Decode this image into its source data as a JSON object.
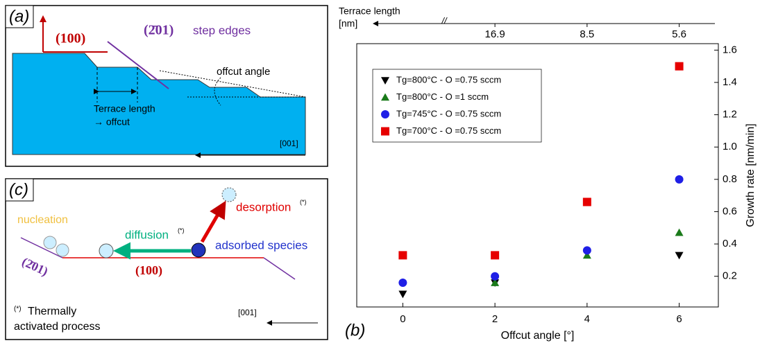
{
  "chart_data": {
    "type": "scatter",
    "panel_label": "(b)",
    "xlabel": "Offcut angle [°]",
    "ylabel": "Growth rate [nm/min]",
    "xlim": [
      -1,
      6.85
    ],
    "ylim": [
      0.01,
      1.64
    ],
    "xticks": [
      0,
      2,
      4,
      6
    ],
    "yticks": [
      0.2,
      0.4,
      0.6,
      0.8,
      1.0,
      1.2,
      1.4,
      1.6
    ],
    "top_axis_label": [
      "Terrace length",
      "[nm]"
    ],
    "top_axis_break": "//",
    "x2ticks": [
      {
        "value": 2,
        "label": "16.9"
      },
      {
        "value": 4,
        "label": "8.5"
      },
      {
        "value": 6,
        "label": "5.6"
      }
    ],
    "legend": "upper left",
    "x": [
      0,
      2,
      4,
      6
    ],
    "series": [
      {
        "name": "Tg=800°C - O =0.75 sccm",
        "color": "#000000",
        "marker": "triangle-down",
        "values": [
          0.09,
          0.16,
          null,
          0.33
        ]
      },
      {
        "name": "Tg=800°C - O =1 sccm",
        "color": "#1a7a1a",
        "marker": "triangle-up",
        "values": [
          null,
          0.16,
          0.33,
          0.47
        ]
      },
      {
        "name": "Tg=745°C - O =0.75 sccm",
        "color": "#1f1fe6",
        "marker": "circle",
        "values": [
          0.16,
          0.2,
          0.36,
          0.8
        ]
      },
      {
        "name": "Tg=700°C - O =0.75 sccm",
        "color": "#e60000",
        "marker": "square",
        "values": [
          0.33,
          0.33,
          0.66,
          1.5
        ]
      }
    ]
  },
  "panel_a": {
    "label": "(a)",
    "plane": "(100)",
    "step_plane": "(2̄01)",
    "step_text": "step edges",
    "offcut_angle": "offcut angle",
    "terrace": "Terrace length",
    "terrace_arrow": "→ offcut",
    "direction": "[001]"
  },
  "panel_c": {
    "label": "(c)",
    "nucleation": "nucleation",
    "diffusion": "diffusion",
    "desorption": "desorption",
    "star": "(*)",
    "adsorbed": "adsorbed species",
    "step_plane": "(2̄01)",
    "plane": "(100)",
    "note": [
      "Thermally",
      "activated process"
    ],
    "direction": "[001]"
  }
}
